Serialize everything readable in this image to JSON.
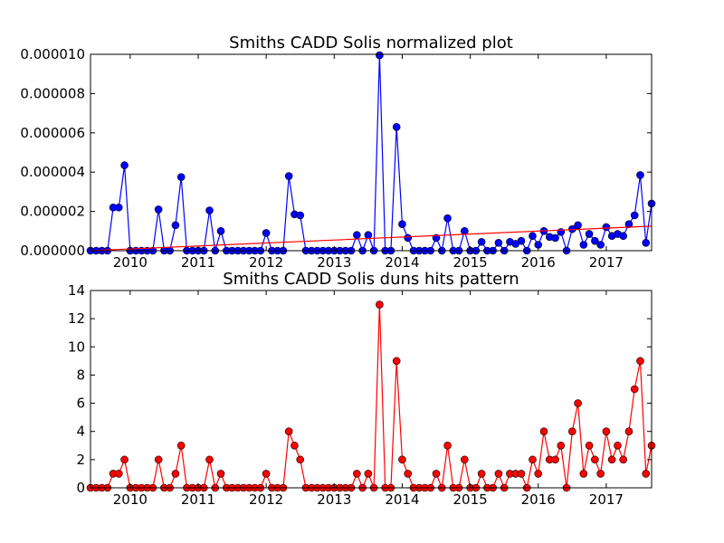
{
  "chart_data": [
    {
      "type": "line",
      "title": "Smiths CADD Solis normalized plot",
      "xlabel": "",
      "ylabel": "",
      "xlim": [
        "2009-06-01",
        "2017-09-01"
      ],
      "ylim": [
        0,
        1e-05
      ],
      "yticks": [
        "0.000000",
        "0.000002",
        "0.000004",
        "0.000006",
        "0.000008",
        "0.000010"
      ],
      "xticks": [
        "2010",
        "2011",
        "2012",
        "2013",
        "2014",
        "2015",
        "2016",
        "2017"
      ],
      "grid": false,
      "series": [
        {
          "color": "#0000ff",
          "marker": "circle",
          "x": [
            "2009-06",
            "2009-07",
            "2009-08",
            "2009-09",
            "2009-10",
            "2009-11",
            "2009-12",
            "2010-01",
            "2010-02",
            "2010-03",
            "2010-04",
            "2010-05",
            "2010-06",
            "2010-07",
            "2010-08",
            "2010-09",
            "2010-10",
            "2010-11",
            "2010-12",
            "2011-01",
            "2011-02",
            "2011-03",
            "2011-04",
            "2011-05",
            "2011-06",
            "2011-07",
            "2011-08",
            "2011-09",
            "2011-10",
            "2011-11",
            "2011-12",
            "2012-01",
            "2012-02",
            "2012-03",
            "2012-04",
            "2012-05",
            "2012-06",
            "2012-07",
            "2012-08",
            "2012-09",
            "2012-10",
            "2012-11",
            "2012-12",
            "2013-01",
            "2013-02",
            "2013-03",
            "2013-04",
            "2013-05",
            "2013-06",
            "2013-07",
            "2013-08",
            "2013-09",
            "2013-10",
            "2013-11",
            "2013-12",
            "2014-01",
            "2014-02",
            "2014-03",
            "2014-04",
            "2014-05",
            "2014-06",
            "2014-07",
            "2014-08",
            "2014-09",
            "2014-10",
            "2014-11",
            "2014-12",
            "2015-01",
            "2015-02",
            "2015-03",
            "2015-04",
            "2015-05",
            "2015-06",
            "2015-07",
            "2015-08",
            "2015-09",
            "2015-10",
            "2015-11",
            "2015-12",
            "2016-01",
            "2016-02",
            "2016-03",
            "2016-04",
            "2016-05",
            "2016-06",
            "2016-07",
            "2016-08",
            "2016-09",
            "2016-10",
            "2016-11",
            "2016-12",
            "2017-01",
            "2017-02",
            "2017-03",
            "2017-04",
            "2017-05",
            "2017-06",
            "2017-07",
            "2017-08",
            "2017-09"
          ],
          "values": [
            0,
            0,
            0,
            0,
            2.2e-06,
            2.2e-06,
            4.35e-06,
            0,
            0,
            0,
            0,
            0,
            2.1e-06,
            0,
            0,
            1.3e-06,
            3.75e-06,
            0,
            0,
            0,
            0,
            2.05e-06,
            0,
            1e-06,
            0,
            0,
            0,
            0,
            0,
            0,
            0,
            9e-07,
            0,
            0,
            0,
            3.8e-06,
            1.85e-06,
            1.8e-06,
            0,
            0,
            0,
            0,
            0,
            0,
            0,
            0,
            0,
            8e-07,
            0,
            8e-07,
            0,
            9.95e-06,
            0,
            0,
            6.3e-06,
            1.35e-06,
            6.5e-07,
            0,
            0,
            0,
            0,
            6.5e-07,
            0,
            1.65e-06,
            0,
            0,
            1e-06,
            0,
            0,
            4.5e-07,
            0,
            0,
            4e-07,
            0,
            4.5e-07,
            3.5e-07,
            5e-07,
            0,
            7.5e-07,
            3e-07,
            1e-06,
            7e-07,
            6.5e-07,
            9.5e-07,
            0,
            1.1e-06,
            1.3e-06,
            3e-07,
            8.5e-07,
            5e-07,
            3e-07,
            1.2e-06,
            7.5e-07,
            8.5e-07,
            7.5e-07,
            1.35e-06,
            1.8e-06,
            3.85e-06,
            4e-07,
            2.4e-06
          ]
        },
        {
          "name": "",
          "kind": "trend",
          "color": "#ff0000",
          "x": [
            "2009-06",
            "2017-09"
          ],
          "values": [
            0,
            1.25e-06
          ]
        }
      ]
    },
    {
      "type": "line",
      "title": "Smiths CADD Solis duns hits pattern",
      "xlabel": "",
      "ylabel": "",
      "xlim": [
        "2009-06-01",
        "2017-09-01"
      ],
      "ylim": [
        0,
        14
      ],
      "yticks": [
        "0",
        "2",
        "4",
        "6",
        "8",
        "10",
        "12",
        "14"
      ],
      "xticks": [
        "2010",
        "2011",
        "2012",
        "2013",
        "2014",
        "2015",
        "2016",
        "2017"
      ],
      "grid": false,
      "series": [
        {
          "color": "#ff0000",
          "marker": "circle",
          "x": [
            "2009-06",
            "2009-07",
            "2009-08",
            "2009-09",
            "2009-10",
            "2009-11",
            "2009-12",
            "2010-01",
            "2010-02",
            "2010-03",
            "2010-04",
            "2010-05",
            "2010-06",
            "2010-07",
            "2010-08",
            "2010-09",
            "2010-10",
            "2010-11",
            "2010-12",
            "2011-01",
            "2011-02",
            "2011-03",
            "2011-04",
            "2011-05",
            "2011-06",
            "2011-07",
            "2011-08",
            "2011-09",
            "2011-10",
            "2011-11",
            "2011-12",
            "2012-01",
            "2012-02",
            "2012-03",
            "2012-04",
            "2012-05",
            "2012-06",
            "2012-07",
            "2012-08",
            "2012-09",
            "2012-10",
            "2012-11",
            "2012-12",
            "2013-01",
            "2013-02",
            "2013-03",
            "2013-04",
            "2013-05",
            "2013-06",
            "2013-07",
            "2013-08",
            "2013-09",
            "2013-10",
            "2013-11",
            "2013-12",
            "2014-01",
            "2014-02",
            "2014-03",
            "2014-04",
            "2014-05",
            "2014-06",
            "2014-07",
            "2014-08",
            "2014-09",
            "2014-10",
            "2014-11",
            "2014-12",
            "2015-01",
            "2015-02",
            "2015-03",
            "2015-04",
            "2015-05",
            "2015-06",
            "2015-07",
            "2015-08",
            "2015-09",
            "2015-10",
            "2015-11",
            "2015-12",
            "2016-01",
            "2016-02",
            "2016-03",
            "2016-04",
            "2016-05",
            "2016-06",
            "2016-07",
            "2016-08",
            "2016-09",
            "2016-10",
            "2016-11",
            "2016-12",
            "2017-01",
            "2017-02",
            "2017-03",
            "2017-04",
            "2017-05",
            "2017-06",
            "2017-07",
            "2017-08",
            "2017-09"
          ],
          "values": [
            0,
            0,
            0,
            0,
            1,
            1,
            2,
            0,
            0,
            0,
            0,
            0,
            2,
            0,
            0,
            1,
            3,
            0,
            0,
            0,
            0,
            2,
            0,
            1,
            0,
            0,
            0,
            0,
            0,
            0,
            0,
            1,
            0,
            0,
            0,
            4,
            3,
            2,
            0,
            0,
            0,
            0,
            0,
            0,
            0,
            0,
            0,
            1,
            0,
            1,
            0,
            13,
            0,
            0,
            9,
            2,
            1,
            0,
            0,
            0,
            0,
            1,
            0,
            3,
            0,
            0,
            2,
            0,
            0,
            1,
            0,
            0,
            1,
            0,
            1,
            1,
            1,
            0,
            2,
            1,
            4,
            2,
            2,
            3,
            0,
            4,
            6,
            1,
            3,
            2,
            1,
            4,
            2,
            3,
            2,
            4,
            7,
            9,
            1,
            3
          ]
        }
      ]
    }
  ]
}
